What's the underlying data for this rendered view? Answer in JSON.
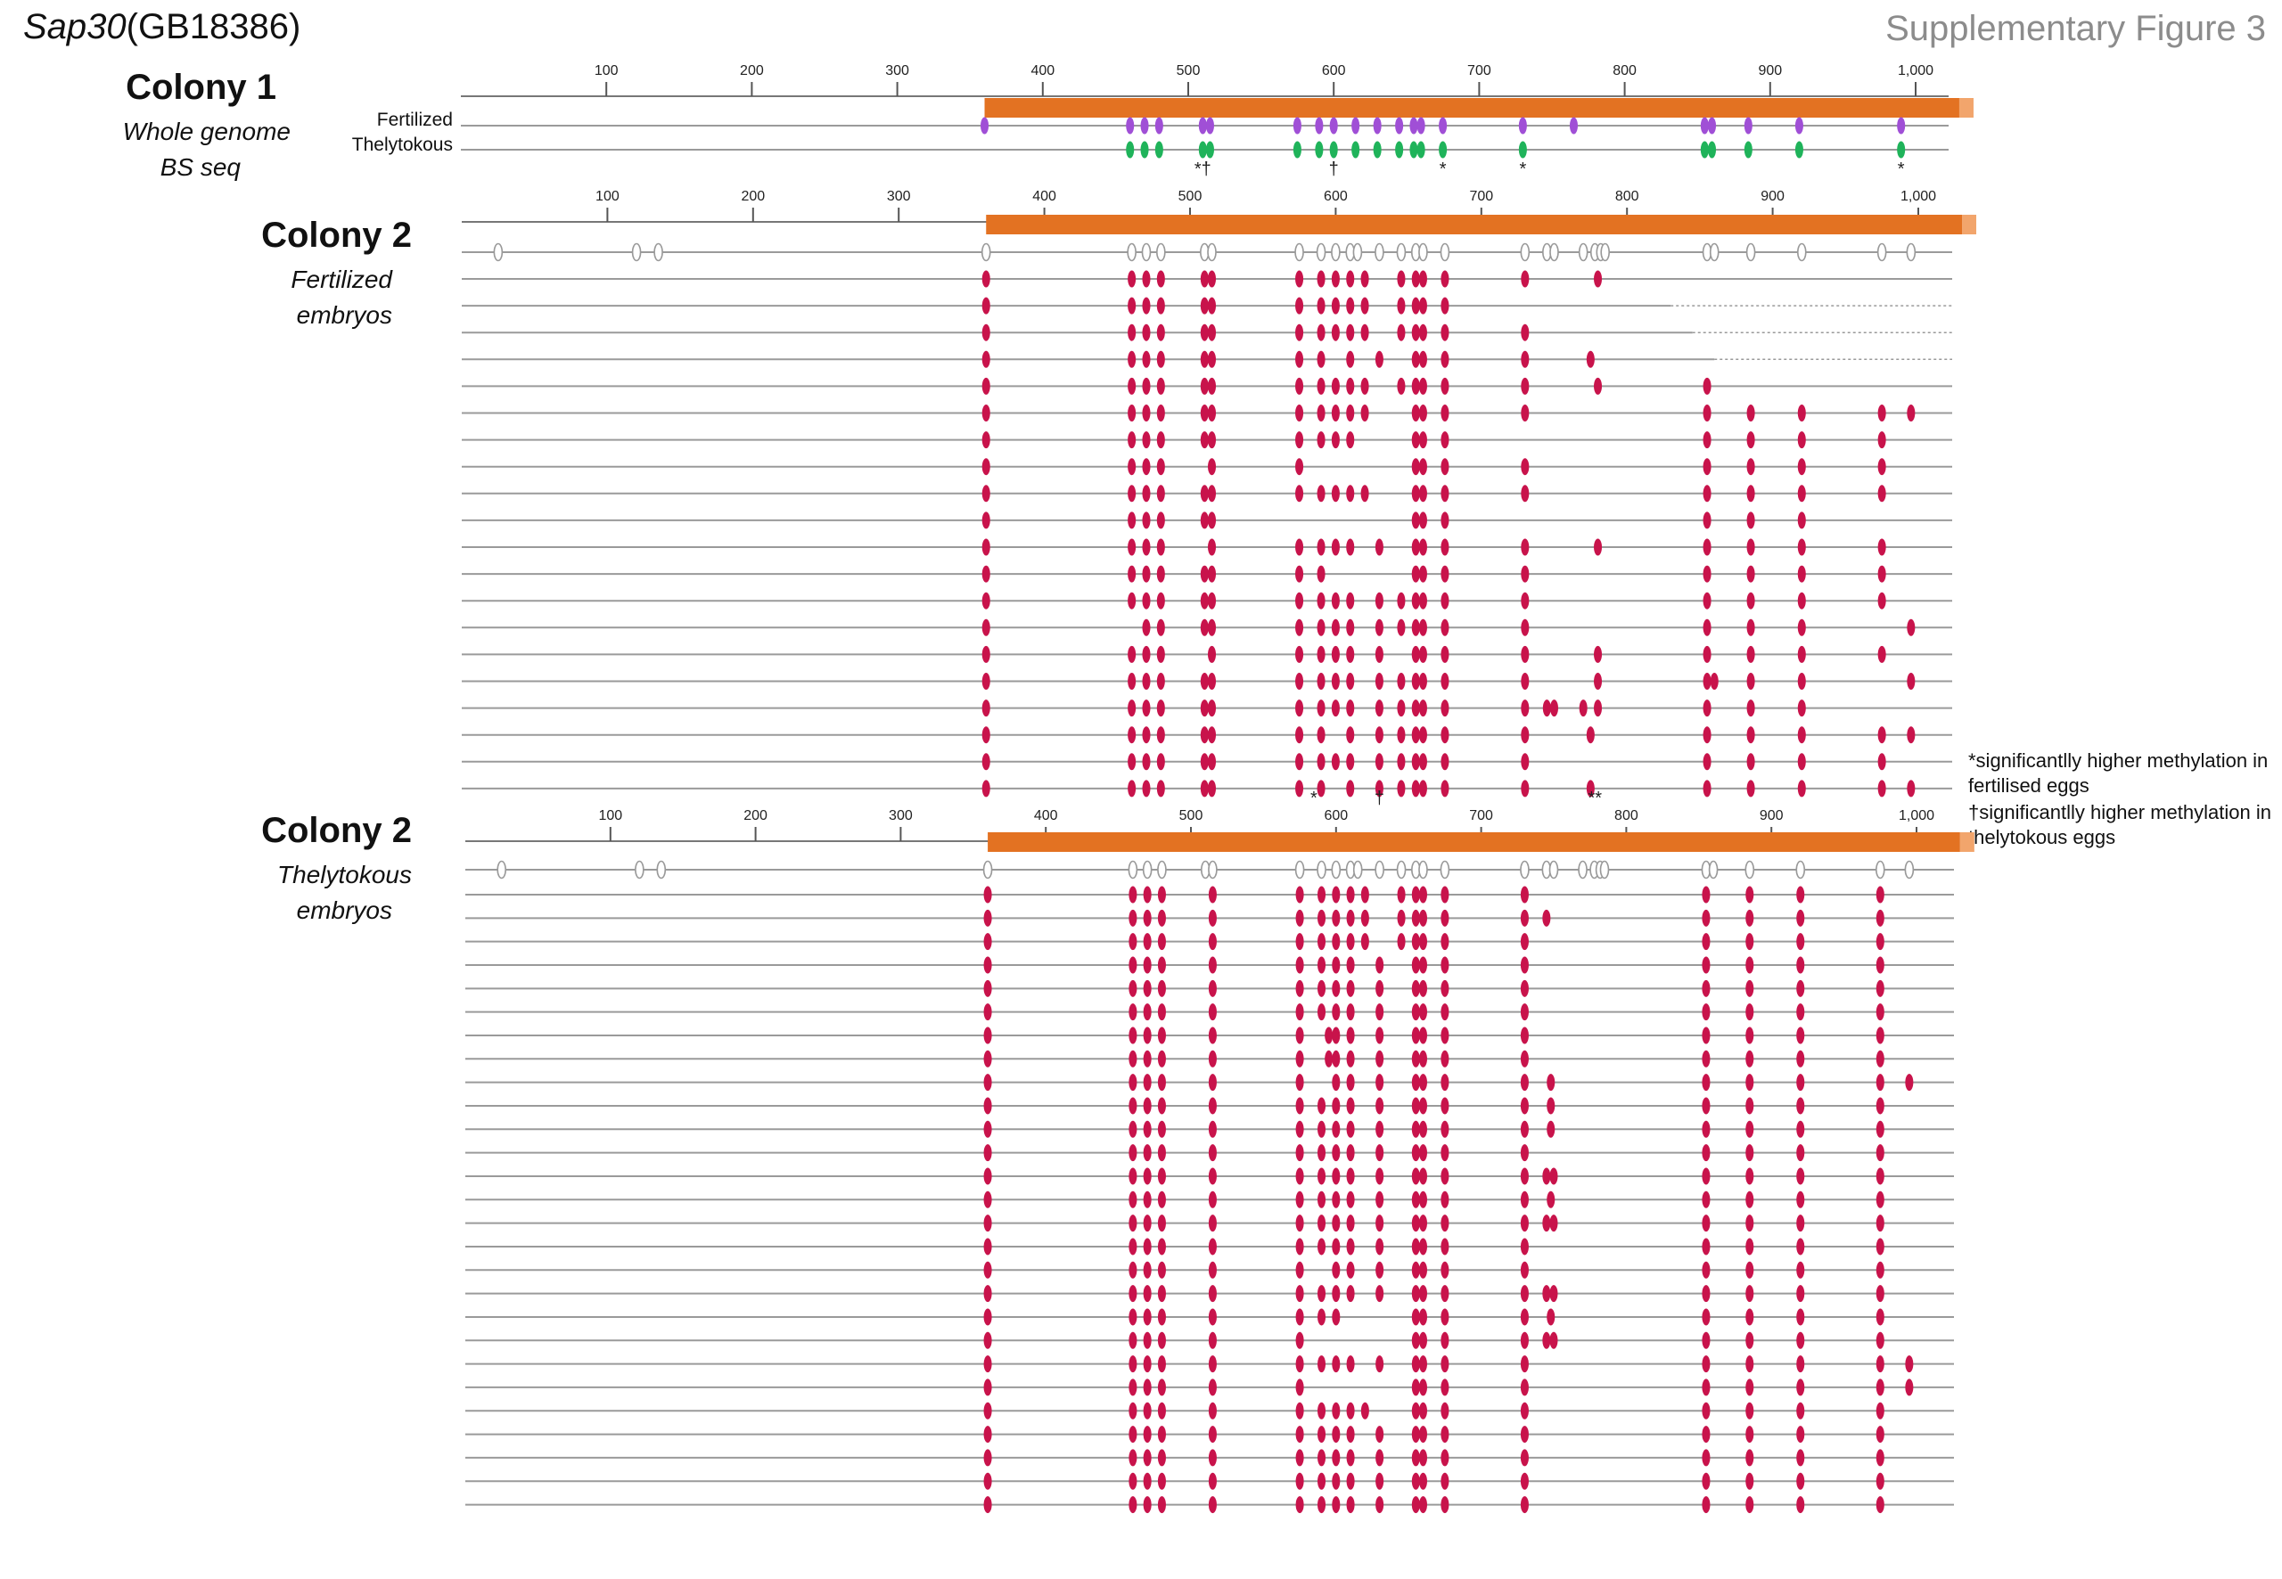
{
  "title": {
    "gene_italic": "Sap30",
    "gene_rest": "(GB18386)"
  },
  "figure_label": "Supplementary Figure 3",
  "axis": {
    "ticks": [
      "100",
      "200",
      "300",
      "400",
      "500",
      "600",
      "700",
      "800",
      "900",
      "1,000"
    ],
    "tick_values": [
      100,
      200,
      300,
      400,
      500,
      600,
      700,
      800,
      900,
      1000
    ]
  },
  "colors": {
    "exon": "#e37222",
    "fertilized_wgbs": "#a04fd6",
    "thelytokous_wgbs": "#1fb35a",
    "methylated": "#c8134b",
    "track_line": "#9a9a9a"
  },
  "cpg_sites": [
    25,
    120,
    135,
    360,
    460,
    470,
    480,
    510,
    515,
    575,
    590,
    600,
    610,
    615,
    630,
    645,
    655,
    660,
    675,
    730,
    745,
    750,
    770,
    778,
    782,
    785,
    855,
    860,
    885,
    920,
    975,
    995
  ],
  "exon": {
    "start": 360,
    "end": 1030
  },
  "colony1": {
    "title": "Colony 1",
    "subtitle": [
      "Whole genome",
      "BS seq"
    ],
    "fertilized": {
      "label": "Fertilized",
      "sites": [
        360,
        460,
        470,
        480,
        510,
        515,
        575,
        590,
        600,
        615,
        630,
        645,
        655,
        660,
        675,
        730,
        765,
        855,
        860,
        885,
        920,
        990
      ]
    },
    "thelytokous": {
      "label": "Thelytokous",
      "sites": [
        460,
        470,
        480,
        510,
        515,
        575,
        590,
        600,
        615,
        630,
        645,
        655,
        660,
        675,
        730,
        855,
        860,
        885,
        920,
        990
      ]
    },
    "marks": [
      {
        "pos": 510,
        "text": "*†"
      },
      {
        "pos": 600,
        "text": "†"
      },
      {
        "pos": 675,
        "text": "*"
      },
      {
        "pos": 730,
        "text": "*"
      },
      {
        "pos": 990,
        "text": "*"
      }
    ]
  },
  "colony2_fertilized": {
    "title": "Colony 2",
    "subtitle": [
      "Fertilized",
      "embryos"
    ],
    "clones": [
      {
        "end": 1030,
        "dotted_from": null,
        "m": [
          360,
          460,
          470,
          480,
          510,
          515,
          575,
          590,
          600,
          610,
          620,
          645,
          655,
          660,
          675,
          730,
          780
        ]
      },
      {
        "end": 1030,
        "dotted_from": 830,
        "m": [
          360,
          460,
          470,
          480,
          510,
          515,
          575,
          590,
          600,
          610,
          620,
          645,
          655,
          660,
          675
        ]
      },
      {
        "end": 1030,
        "dotted_from": 845,
        "m": [
          360,
          460,
          470,
          480,
          510,
          515,
          575,
          590,
          600,
          610,
          620,
          645,
          655,
          660,
          675,
          730
        ]
      },
      {
        "end": 1030,
        "dotted_from": 860,
        "m": [
          360,
          460,
          470,
          480,
          510,
          515,
          575,
          590,
          610,
          630,
          655,
          660,
          675,
          730,
          775
        ]
      },
      {
        "end": 1030,
        "dotted_from": null,
        "m": [
          360,
          460,
          470,
          480,
          510,
          515,
          575,
          590,
          600,
          610,
          620,
          645,
          655,
          660,
          675,
          730,
          780,
          855
        ]
      },
      {
        "end": 1030,
        "dotted_from": null,
        "m": [
          360,
          460,
          470,
          480,
          510,
          515,
          575,
          590,
          600,
          610,
          620,
          655,
          660,
          675,
          730,
          855,
          885,
          920,
          975,
          995
        ]
      },
      {
        "end": 1030,
        "dotted_from": null,
        "m": [
          360,
          460,
          470,
          480,
          510,
          515,
          575,
          590,
          600,
          610,
          655,
          660,
          675,
          855,
          885,
          920,
          975
        ]
      },
      {
        "end": 1030,
        "dotted_from": null,
        "m": [
          360,
          460,
          470,
          480,
          515,
          575,
          655,
          660,
          675,
          730,
          855,
          885,
          920,
          975
        ]
      },
      {
        "end": 1030,
        "dotted_from": null,
        "m": [
          360,
          460,
          470,
          480,
          510,
          515,
          575,
          590,
          600,
          610,
          620,
          655,
          660,
          675,
          730,
          855,
          885,
          920,
          975
        ]
      },
      {
        "end": 1030,
        "dotted_from": null,
        "m": [
          360,
          460,
          470,
          480,
          510,
          515,
          655,
          660,
          675,
          855,
          885,
          920
        ]
      },
      {
        "end": 1030,
        "dotted_from": null,
        "m": [
          360,
          460,
          470,
          480,
          515,
          575,
          590,
          600,
          610,
          630,
          655,
          660,
          675,
          730,
          780,
          855,
          885,
          920,
          975
        ]
      },
      {
        "end": 1030,
        "dotted_from": null,
        "m": [
          360,
          460,
          470,
          480,
          510,
          515,
          575,
          590,
          655,
          660,
          675,
          730,
          855,
          885,
          920,
          975
        ]
      },
      {
        "end": 1030,
        "dotted_from": null,
        "m": [
          360,
          460,
          470,
          480,
          510,
          515,
          575,
          590,
          600,
          610,
          630,
          645,
          655,
          660,
          675,
          730,
          855,
          885,
          920,
          975
        ]
      },
      {
        "end": 1030,
        "dotted_from": null,
        "m": [
          360,
          470,
          480,
          510,
          515,
          575,
          590,
          600,
          610,
          630,
          645,
          655,
          660,
          675,
          730,
          855,
          885,
          920,
          995
        ]
      },
      {
        "end": 1030,
        "dotted_from": null,
        "m": [
          360,
          460,
          470,
          480,
          515,
          575,
          590,
          600,
          610,
          630,
          655,
          660,
          675,
          730,
          780,
          855,
          885,
          920,
          975
        ]
      },
      {
        "end": 1030,
        "dotted_from": null,
        "m": [
          360,
          460,
          470,
          480,
          510,
          515,
          575,
          590,
          600,
          610,
          630,
          645,
          655,
          660,
          675,
          730,
          780,
          855,
          860,
          885,
          920,
          995
        ]
      },
      {
        "end": 1030,
        "dotted_from": null,
        "m": [
          360,
          460,
          470,
          480,
          510,
          515,
          575,
          590,
          600,
          610,
          630,
          645,
          655,
          660,
          675,
          730,
          745,
          750,
          770,
          780,
          855,
          885,
          920
        ]
      },
      {
        "end": 1030,
        "dotted_from": null,
        "m": [
          360,
          460,
          470,
          480,
          510,
          515,
          575,
          590,
          610,
          630,
          645,
          655,
          660,
          675,
          730,
          775,
          855,
          885,
          920,
          975,
          995
        ]
      },
      {
        "end": 1030,
        "dotted_from": null,
        "m": [
          360,
          460,
          470,
          480,
          510,
          515,
          575,
          590,
          600,
          610,
          630,
          645,
          655,
          660,
          675,
          730,
          855,
          885,
          920,
          975
        ]
      },
      {
        "end": 1030,
        "dotted_from": null,
        "m": [
          360,
          460,
          470,
          480,
          510,
          515,
          575,
          590,
          610,
          630,
          645,
          655,
          660,
          675,
          730,
          775,
          855,
          885,
          920,
          975,
          995
        ]
      }
    ],
    "marks": [
      {
        "pos": 585,
        "text": "*"
      },
      {
        "pos": 630,
        "text": "†"
      },
      {
        "pos": 778,
        "text": "**"
      }
    ]
  },
  "legend": [
    "*significantlly higher methylation in fertilised eggs",
    "†significantlly higher methylation in thelytokous eggs"
  ],
  "colony2_thelytokous": {
    "title": "Colony 2",
    "subtitle": [
      "Thelytokous",
      "embryos"
    ],
    "clones": [
      [
        360,
        460,
        470,
        480,
        515,
        575,
        590,
        600,
        610,
        620,
        645,
        655,
        660,
        675,
        730,
        855,
        885,
        920,
        975
      ],
      [
        360,
        460,
        470,
        480,
        515,
        575,
        590,
        600,
        610,
        620,
        645,
        655,
        660,
        675,
        730,
        745,
        855,
        885,
        920,
        975
      ],
      [
        360,
        460,
        470,
        480,
        515,
        575,
        590,
        600,
        610,
        620,
        645,
        655,
        660,
        675,
        730,
        855,
        885,
        920,
        975
      ],
      [
        360,
        460,
        470,
        480,
        515,
        575,
        590,
        600,
        610,
        630,
        655,
        660,
        675,
        730,
        855,
        885,
        920,
        975
      ],
      [
        360,
        460,
        470,
        480,
        515,
        575,
        590,
        600,
        610,
        630,
        655,
        660,
        675,
        730,
        855,
        885,
        920,
        975
      ],
      [
        360,
        460,
        470,
        480,
        515,
        575,
        590,
        600,
        610,
        630,
        655,
        660,
        675,
        730,
        855,
        885,
        920,
        975
      ],
      [
        360,
        460,
        470,
        480,
        515,
        575,
        595,
        600,
        610,
        630,
        655,
        660,
        675,
        730,
        855,
        885,
        920,
        975
      ],
      [
        360,
        460,
        470,
        480,
        515,
        575,
        595,
        600,
        610,
        630,
        655,
        660,
        675,
        730,
        855,
        885,
        920,
        975
      ],
      [
        360,
        460,
        470,
        480,
        515,
        575,
        600,
        610,
        630,
        655,
        660,
        675,
        730,
        748,
        855,
        885,
        920,
        975,
        995
      ],
      [
        360,
        460,
        470,
        480,
        515,
        575,
        590,
        600,
        610,
        630,
        655,
        660,
        675,
        730,
        748,
        855,
        885,
        920,
        975
      ],
      [
        360,
        460,
        470,
        480,
        515,
        575,
        590,
        600,
        610,
        630,
        655,
        660,
        675,
        730,
        748,
        855,
        885,
        920,
        975
      ],
      [
        360,
        460,
        470,
        480,
        515,
        575,
        590,
        600,
        610,
        630,
        655,
        660,
        675,
        730,
        855,
        885,
        920,
        975
      ],
      [
        360,
        460,
        470,
        480,
        515,
        575,
        590,
        600,
        610,
        630,
        655,
        660,
        675,
        730,
        745,
        750,
        855,
        885,
        920,
        975
      ],
      [
        360,
        460,
        470,
        480,
        515,
        575,
        590,
        600,
        610,
        630,
        655,
        660,
        675,
        730,
        748,
        855,
        885,
        920,
        975
      ],
      [
        360,
        460,
        470,
        480,
        515,
        575,
        590,
        600,
        610,
        630,
        655,
        660,
        675,
        730,
        745,
        750,
        855,
        885,
        920,
        975
      ],
      [
        360,
        460,
        470,
        480,
        515,
        575,
        590,
        600,
        610,
        630,
        655,
        660,
        675,
        730,
        855,
        885,
        920,
        975
      ],
      [
        360,
        460,
        470,
        480,
        515,
        575,
        600,
        610,
        630,
        655,
        660,
        675,
        730,
        855,
        885,
        920,
        975
      ],
      [
        360,
        460,
        470,
        480,
        515,
        575,
        590,
        600,
        610,
        630,
        655,
        660,
        675,
        730,
        745,
        750,
        855,
        885,
        920,
        975
      ],
      [
        360,
        460,
        470,
        480,
        515,
        575,
        590,
        600,
        655,
        660,
        675,
        730,
        748,
        855,
        885,
        920,
        975
      ],
      [
        360,
        460,
        470,
        480,
        515,
        575,
        655,
        660,
        675,
        730,
        745,
        750,
        855,
        885,
        920,
        975
      ],
      [
        360,
        460,
        470,
        480,
        515,
        575,
        590,
        600,
        610,
        630,
        655,
        660,
        675,
        730,
        855,
        885,
        920,
        975,
        995
      ],
      [
        360,
        460,
        470,
        480,
        515,
        575,
        655,
        660,
        675,
        730,
        855,
        885,
        920,
        975,
        995
      ],
      [
        360,
        460,
        470,
        480,
        515,
        575,
        590,
        600,
        610,
        620,
        655,
        660,
        675,
        730,
        855,
        885,
        920,
        975
      ],
      [
        360,
        460,
        470,
        480,
        515,
        575,
        590,
        600,
        610,
        630,
        655,
        660,
        675,
        730,
        855,
        885,
        920,
        975
      ],
      [
        360,
        460,
        470,
        480,
        515,
        575,
        590,
        600,
        610,
        630,
        655,
        660,
        675,
        730,
        855,
        885,
        920,
        975
      ],
      [
        360,
        460,
        470,
        480,
        515,
        575,
        590,
        600,
        610,
        630,
        655,
        660,
        675,
        730,
        855,
        885,
        920,
        975
      ],
      [
        360,
        460,
        470,
        480,
        515,
        575,
        590,
        600,
        610,
        630,
        655,
        660,
        675,
        730,
        855,
        885,
        920,
        975
      ]
    ]
  }
}
